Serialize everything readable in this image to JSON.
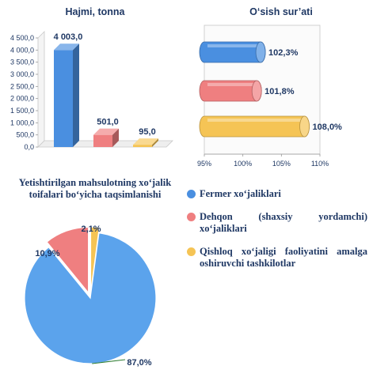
{
  "chart_data": [
    {
      "type": "bar",
      "title": "Hajmi, tonna",
      "categories": [
        "Fermer xo‘jaliklari",
        "Dehqon (shaxsiy yordamchi) xo‘jaliklari",
        "Qishloq xo‘jaligi faoliyatini amalga oshiruvchi tashkilotlar"
      ],
      "values": [
        4003.0,
        501.0,
        95.0
      ],
      "value_labels": [
        "4 003,0",
        "501,0",
        "95,0"
      ],
      "ylim": [
        0,
        4500
      ],
      "yticks": [
        "0,0",
        "500,0",
        "1 000,0",
        "1 500,0",
        "2 000,0",
        "2 500,0",
        "3 000,0",
        "3 500,0",
        "4 000,0",
        "4 500,0"
      ],
      "colors": [
        "#4a8fe0",
        "#ef7f80",
        "#f5c455"
      ]
    },
    {
      "type": "bar",
      "orientation": "horizontal",
      "title": "O‘sish sur’ati",
      "categories": [
        "Fermer xo‘jaliklari",
        "Dehqon (shaxsiy yordamchi) xo‘jaliklari",
        "Qishloq xo‘jaligi faoliyatini amalga oshiruvchi tashkilotlar"
      ],
      "values": [
        102.3,
        101.8,
        108.0
      ],
      "value_labels": [
        "102,3%",
        "101,8%",
        "108,0%"
      ],
      "xlim": [
        95,
        110
      ],
      "xticks": [
        "95%",
        "100%",
        "105%",
        "110%"
      ],
      "colors": [
        "#4a8fe0",
        "#ef7f80",
        "#f5c455"
      ]
    },
    {
      "type": "pie",
      "title": "Yetishtirilgan mahsulotning xo‘jalik toifalari bo‘yicha taqsimlanishi",
      "values": [
        87.0,
        10.9,
        2.1
      ],
      "value_labels": [
        "87,0%",
        "10,9%",
        "2,1%"
      ],
      "colors": [
        "#5ba3ec",
        "#ef7f80",
        "#f5c455"
      ]
    }
  ],
  "legend": [
    {
      "label": "Fermer xo‘jaliklari",
      "color": "#4a8fe0"
    },
    {
      "label": "Dehqon (shaxsiy yordamchi) xo‘jaliklari",
      "color": "#ef7f80"
    },
    {
      "label": "Qishloq xo‘jaligi faoliyatini amalga oshiruvchi tashkilotlar",
      "color": "#f5c455"
    }
  ]
}
